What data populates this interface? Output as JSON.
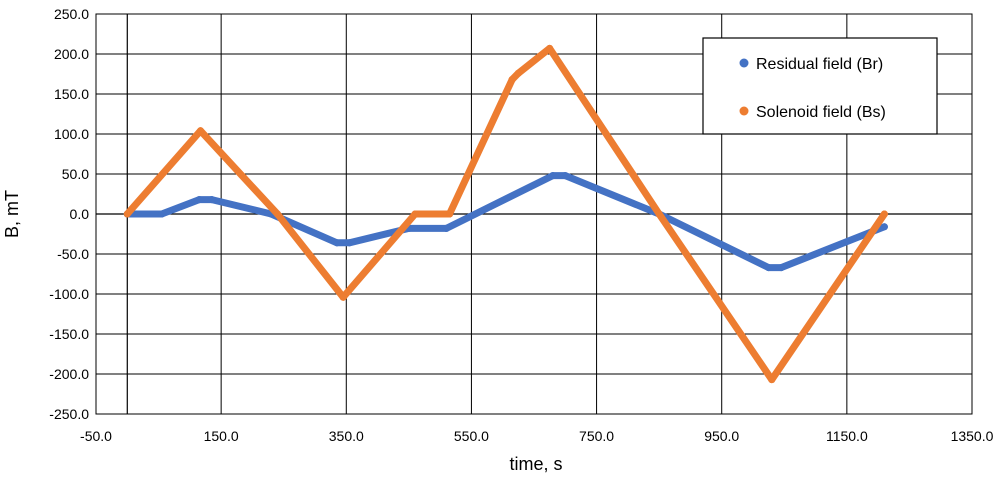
{
  "chart_data": {
    "type": "scatter",
    "xlabel": "time, s",
    "ylabel": "B, mT",
    "xlim": [
      -50,
      1350
    ],
    "ylim": [
      -250,
      250
    ],
    "xticks": [
      -50,
      150,
      350,
      550,
      750,
      950,
      1150,
      1350
    ],
    "yticks": [
      250,
      200,
      150,
      100,
      50,
      0,
      -50,
      -100,
      -150,
      -200,
      -250
    ],
    "xtick_labels": [
      "-50.0",
      "150.0",
      "350.0",
      "550.0",
      "750.0",
      "950.0",
      "1150.0",
      "1350.0"
    ],
    "ytick_labels": [
      "250.0",
      "200.0",
      "150.0",
      "100.0",
      "50.0",
      "0.0",
      "-50.0",
      "-100.0",
      "-150.0",
      "-200.0",
      "-250.0"
    ],
    "grid": true,
    "legend_position": "top-right",
    "series": [
      {
        "name": "Residual field (Br)",
        "color": "#4472C4",
        "points": [
          [
            0,
            0
          ],
          [
            55,
            0
          ],
          [
            115,
            18
          ],
          [
            135,
            18
          ],
          [
            230,
            0
          ],
          [
            335,
            -36
          ],
          [
            355,
            -36
          ],
          [
            450,
            -18
          ],
          [
            510,
            -18
          ],
          [
            680,
            48
          ],
          [
            700,
            48
          ],
          [
            850,
            0
          ],
          [
            1025,
            -67
          ],
          [
            1045,
            -67
          ],
          [
            1210,
            -16
          ]
        ]
      },
      {
        "name": "Solenoid field (Bs)",
        "color": "#ED7D31",
        "points": [
          [
            0,
            0
          ],
          [
            117,
            104
          ],
          [
            240,
            0
          ],
          [
            345,
            -104
          ],
          [
            460,
            0
          ],
          [
            515,
            0
          ],
          [
            615,
            168
          ],
          [
            625,
            176
          ],
          [
            675,
            207
          ],
          [
            850,
            0
          ],
          [
            1030,
            -207
          ],
          [
            1210,
            0
          ]
        ]
      }
    ]
  }
}
